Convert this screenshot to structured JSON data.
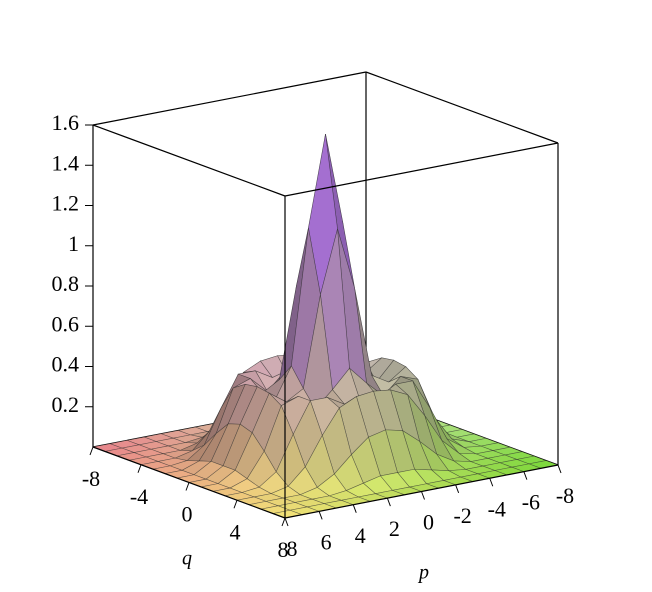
{
  "chart_data": {
    "type": "surface",
    "x_label": "q",
    "y_label": "p",
    "x": [
      -8,
      -7,
      -6,
      -5,
      -4,
      -3,
      -2,
      -1,
      0,
      1,
      2,
      3,
      4,
      5,
      6,
      7,
      8
    ],
    "y": [
      -8,
      -7,
      -6,
      -5,
      -4,
      -3,
      -2,
      -1,
      0,
      1,
      2,
      3,
      4,
      5,
      6,
      7,
      8
    ],
    "z": [
      [
        0,
        0,
        0,
        0,
        0,
        0,
        0,
        0,
        0,
        0,
        0,
        0,
        0,
        0,
        0,
        0,
        0
      ],
      [
        0,
        0,
        0,
        0,
        0,
        0,
        0,
        0,
        0,
        0,
        0,
        0,
        0,
        0,
        0,
        0,
        0
      ],
      [
        0,
        0,
        0,
        0,
        0,
        0.01,
        0.03,
        0.05,
        0.05,
        0.05,
        0.03,
        0.01,
        0,
        0,
        0,
        0,
        0
      ],
      [
        0,
        0,
        0,
        0,
        0.02,
        0.07,
        0.15,
        0.22,
        0.24,
        0.22,
        0.15,
        0.07,
        0.02,
        0,
        0,
        0,
        0
      ],
      [
        0,
        0,
        0,
        0.02,
        0.1,
        0.24,
        0.36,
        0.4,
        0.41,
        0.4,
        0.36,
        0.24,
        0.1,
        0.02,
        0,
        0,
        0
      ],
      [
        0,
        0,
        0.01,
        0.07,
        0.24,
        0.39,
        0.39,
        0.34,
        0.32,
        0.34,
        0.39,
        0.39,
        0.24,
        0.07,
        0.01,
        0,
        0
      ],
      [
        0,
        0,
        0.03,
        0.15,
        0.36,
        0.39,
        0.31,
        0.39,
        0.48,
        0.39,
        0.31,
        0.39,
        0.36,
        0.15,
        0.03,
        0,
        0
      ],
      [
        0,
        0,
        0.05,
        0.22,
        0.4,
        0.34,
        0.39,
        0.84,
        1.15,
        0.84,
        0.39,
        0.34,
        0.4,
        0.22,
        0.05,
        0,
        0
      ],
      [
        0,
        0,
        0.05,
        0.24,
        0.41,
        0.32,
        0.48,
        1.15,
        1.6,
        1.15,
        0.48,
        0.32,
        0.41,
        0.24,
        0.05,
        0,
        0
      ],
      [
        0,
        0,
        0.05,
        0.22,
        0.4,
        0.34,
        0.39,
        0.84,
        1.15,
        0.84,
        0.39,
        0.34,
        0.4,
        0.22,
        0.05,
        0,
        0
      ],
      [
        0,
        0,
        0.03,
        0.15,
        0.36,
        0.39,
        0.31,
        0.39,
        0.48,
        0.39,
        0.31,
        0.39,
        0.36,
        0.15,
        0.03,
        0,
        0
      ],
      [
        0,
        0,
        0.01,
        0.07,
        0.24,
        0.39,
        0.39,
        0.34,
        0.32,
        0.34,
        0.39,
        0.39,
        0.24,
        0.07,
        0.01,
        0,
        0
      ],
      [
        0,
        0,
        0,
        0.02,
        0.1,
        0.24,
        0.36,
        0.4,
        0.41,
        0.4,
        0.36,
        0.24,
        0.1,
        0.02,
        0,
        0,
        0
      ],
      [
        0,
        0,
        0,
        0,
        0.02,
        0.07,
        0.15,
        0.22,
        0.24,
        0.22,
        0.15,
        0.07,
        0.02,
        0,
        0,
        0,
        0
      ],
      [
        0,
        0,
        0,
        0,
        0,
        0.01,
        0.03,
        0.05,
        0.05,
        0.05,
        0.03,
        0.01,
        0,
        0,
        0,
        0,
        0
      ],
      [
        0,
        0,
        0,
        0,
        0,
        0,
        0,
        0,
        0,
        0,
        0,
        0,
        0,
        0,
        0,
        0,
        0
      ],
      [
        0,
        0,
        0,
        0,
        0,
        0,
        0,
        0,
        0,
        0,
        0,
        0,
        0,
        0,
        0,
        0,
        0
      ]
    ],
    "xlim": [
      -8,
      8
    ],
    "ylim": [
      -8,
      8
    ],
    "zlim": [
      0,
      1.6
    ],
    "xticks": [
      -8,
      -4,
      0,
      4,
      8
    ],
    "yticks": [
      8,
      6,
      4,
      2,
      0,
      -2,
      -4,
      -6,
      -8
    ],
    "zticks": [
      0.2,
      0.4,
      0.6,
      0.8,
      1,
      1.2,
      1.4,
      1.6
    ]
  }
}
